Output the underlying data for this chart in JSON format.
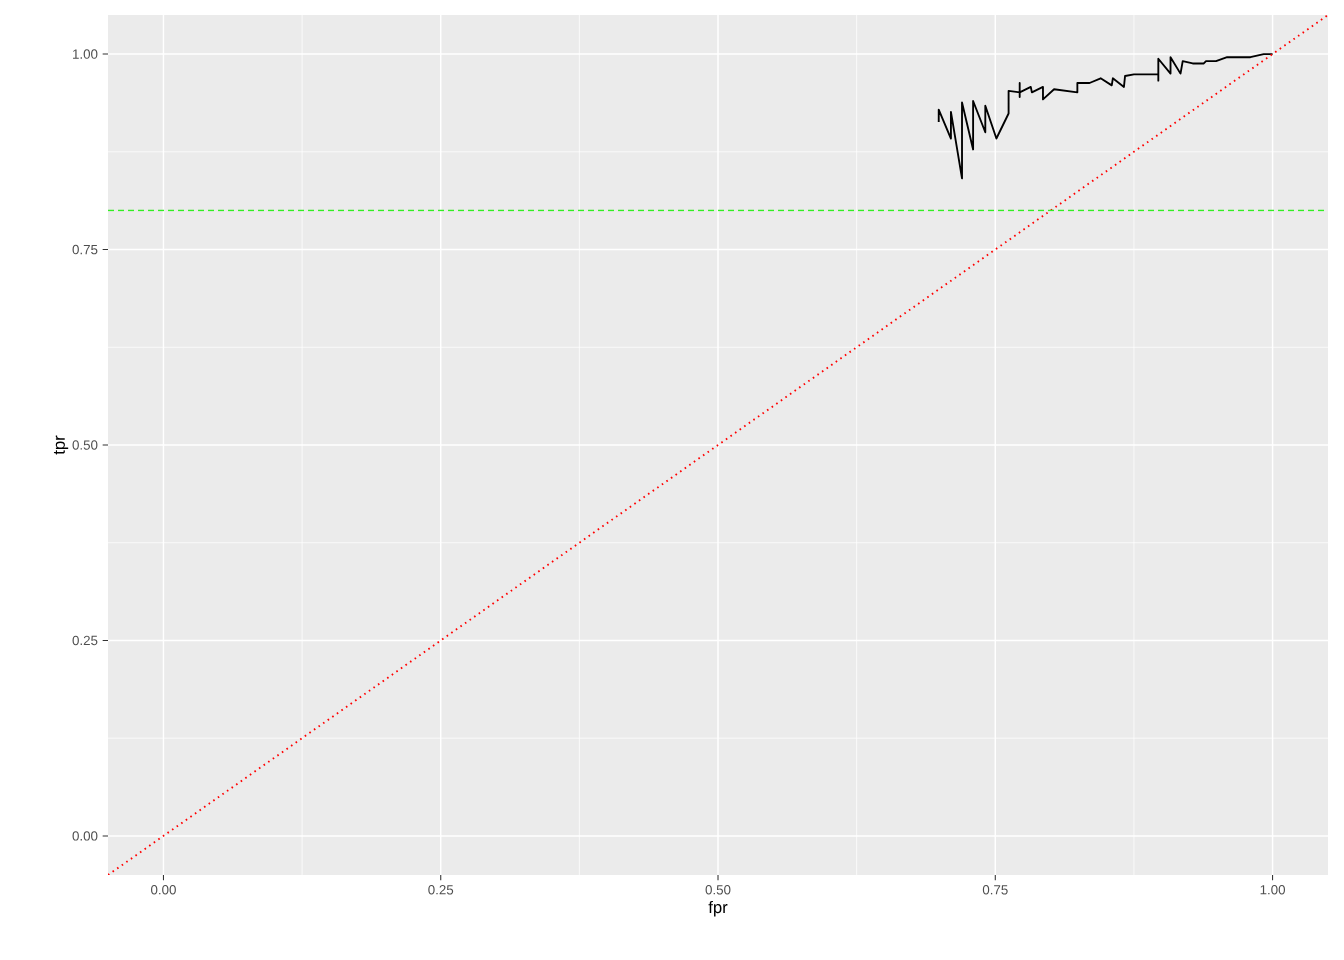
{
  "chart_data": {
    "type": "line",
    "xlabel": "fpr",
    "ylabel": "tpr",
    "xlim": [
      -0.05,
      1.05
    ],
    "ylim": [
      -0.05,
      1.05
    ],
    "xticks": [
      {
        "value": 0,
        "label": "0.00"
      },
      {
        "value": 0.25,
        "label": "0.25"
      },
      {
        "value": 0.5,
        "label": "0.50"
      },
      {
        "value": 0.75,
        "label": "0.75"
      },
      {
        "value": 1,
        "label": "1.00"
      }
    ],
    "yticks": [
      {
        "value": 0,
        "label": "0.00"
      },
      {
        "value": 0.25,
        "label": "0.25"
      },
      {
        "value": 0.5,
        "label": "0.50"
      },
      {
        "value": 0.75,
        "label": "0.75"
      },
      {
        "value": 1,
        "label": "1.00"
      }
    ],
    "grid": true,
    "legend": false,
    "marker": "none",
    "series": [
      {
        "color": "#000000",
        "line_style": "solid",
        "x": [
          0.699,
          0.699,
          0.71,
          0.71,
          0.72,
          0.72,
          0.73,
          0.73,
          0.741,
          0.741,
          0.751,
          0.762,
          0.762,
          0.772,
          0.772,
          0.772,
          0.772,
          0.782,
          0.783,
          0.793,
          0.793,
          0.803,
          0.824,
          0.824,
          0.835,
          0.845,
          0.855,
          0.856,
          0.866,
          0.867,
          0.875,
          0.897,
          0.897,
          0.897,
          0.908,
          0.908,
          0.917,
          0.919,
          0.928,
          0.938,
          0.94,
          0.949,
          0.959,
          0.98,
          0.992,
          1.0
        ],
        "values": [
          0.913,
          0.929,
          0.892,
          0.926,
          0.841,
          0.938,
          0.878,
          0.94,
          0.9,
          0.934,
          0.892,
          0.924,
          0.953,
          0.951,
          0.963,
          0.945,
          0.951,
          0.958,
          0.951,
          0.958,
          0.942,
          0.955,
          0.951,
          0.963,
          0.963,
          0.969,
          0.96,
          0.969,
          0.958,
          0.972,
          0.974,
          0.974,
          0.966,
          0.994,
          0.975,
          0.996,
          0.975,
          0.991,
          0.988,
          0.988,
          0.991,
          0.991,
          0.996,
          0.996,
          1.0,
          1.0
        ]
      },
      {
        "color": "#ff0000",
        "line_style": "dotted",
        "x": [
          -0.05,
          1.05
        ],
        "values": [
          -0.05,
          1.05
        ]
      }
    ],
    "ref_lines": [
      {
        "axis": "y",
        "value": 0.8,
        "color": "#33ee22",
        "line_style": "dashed"
      }
    ]
  }
}
